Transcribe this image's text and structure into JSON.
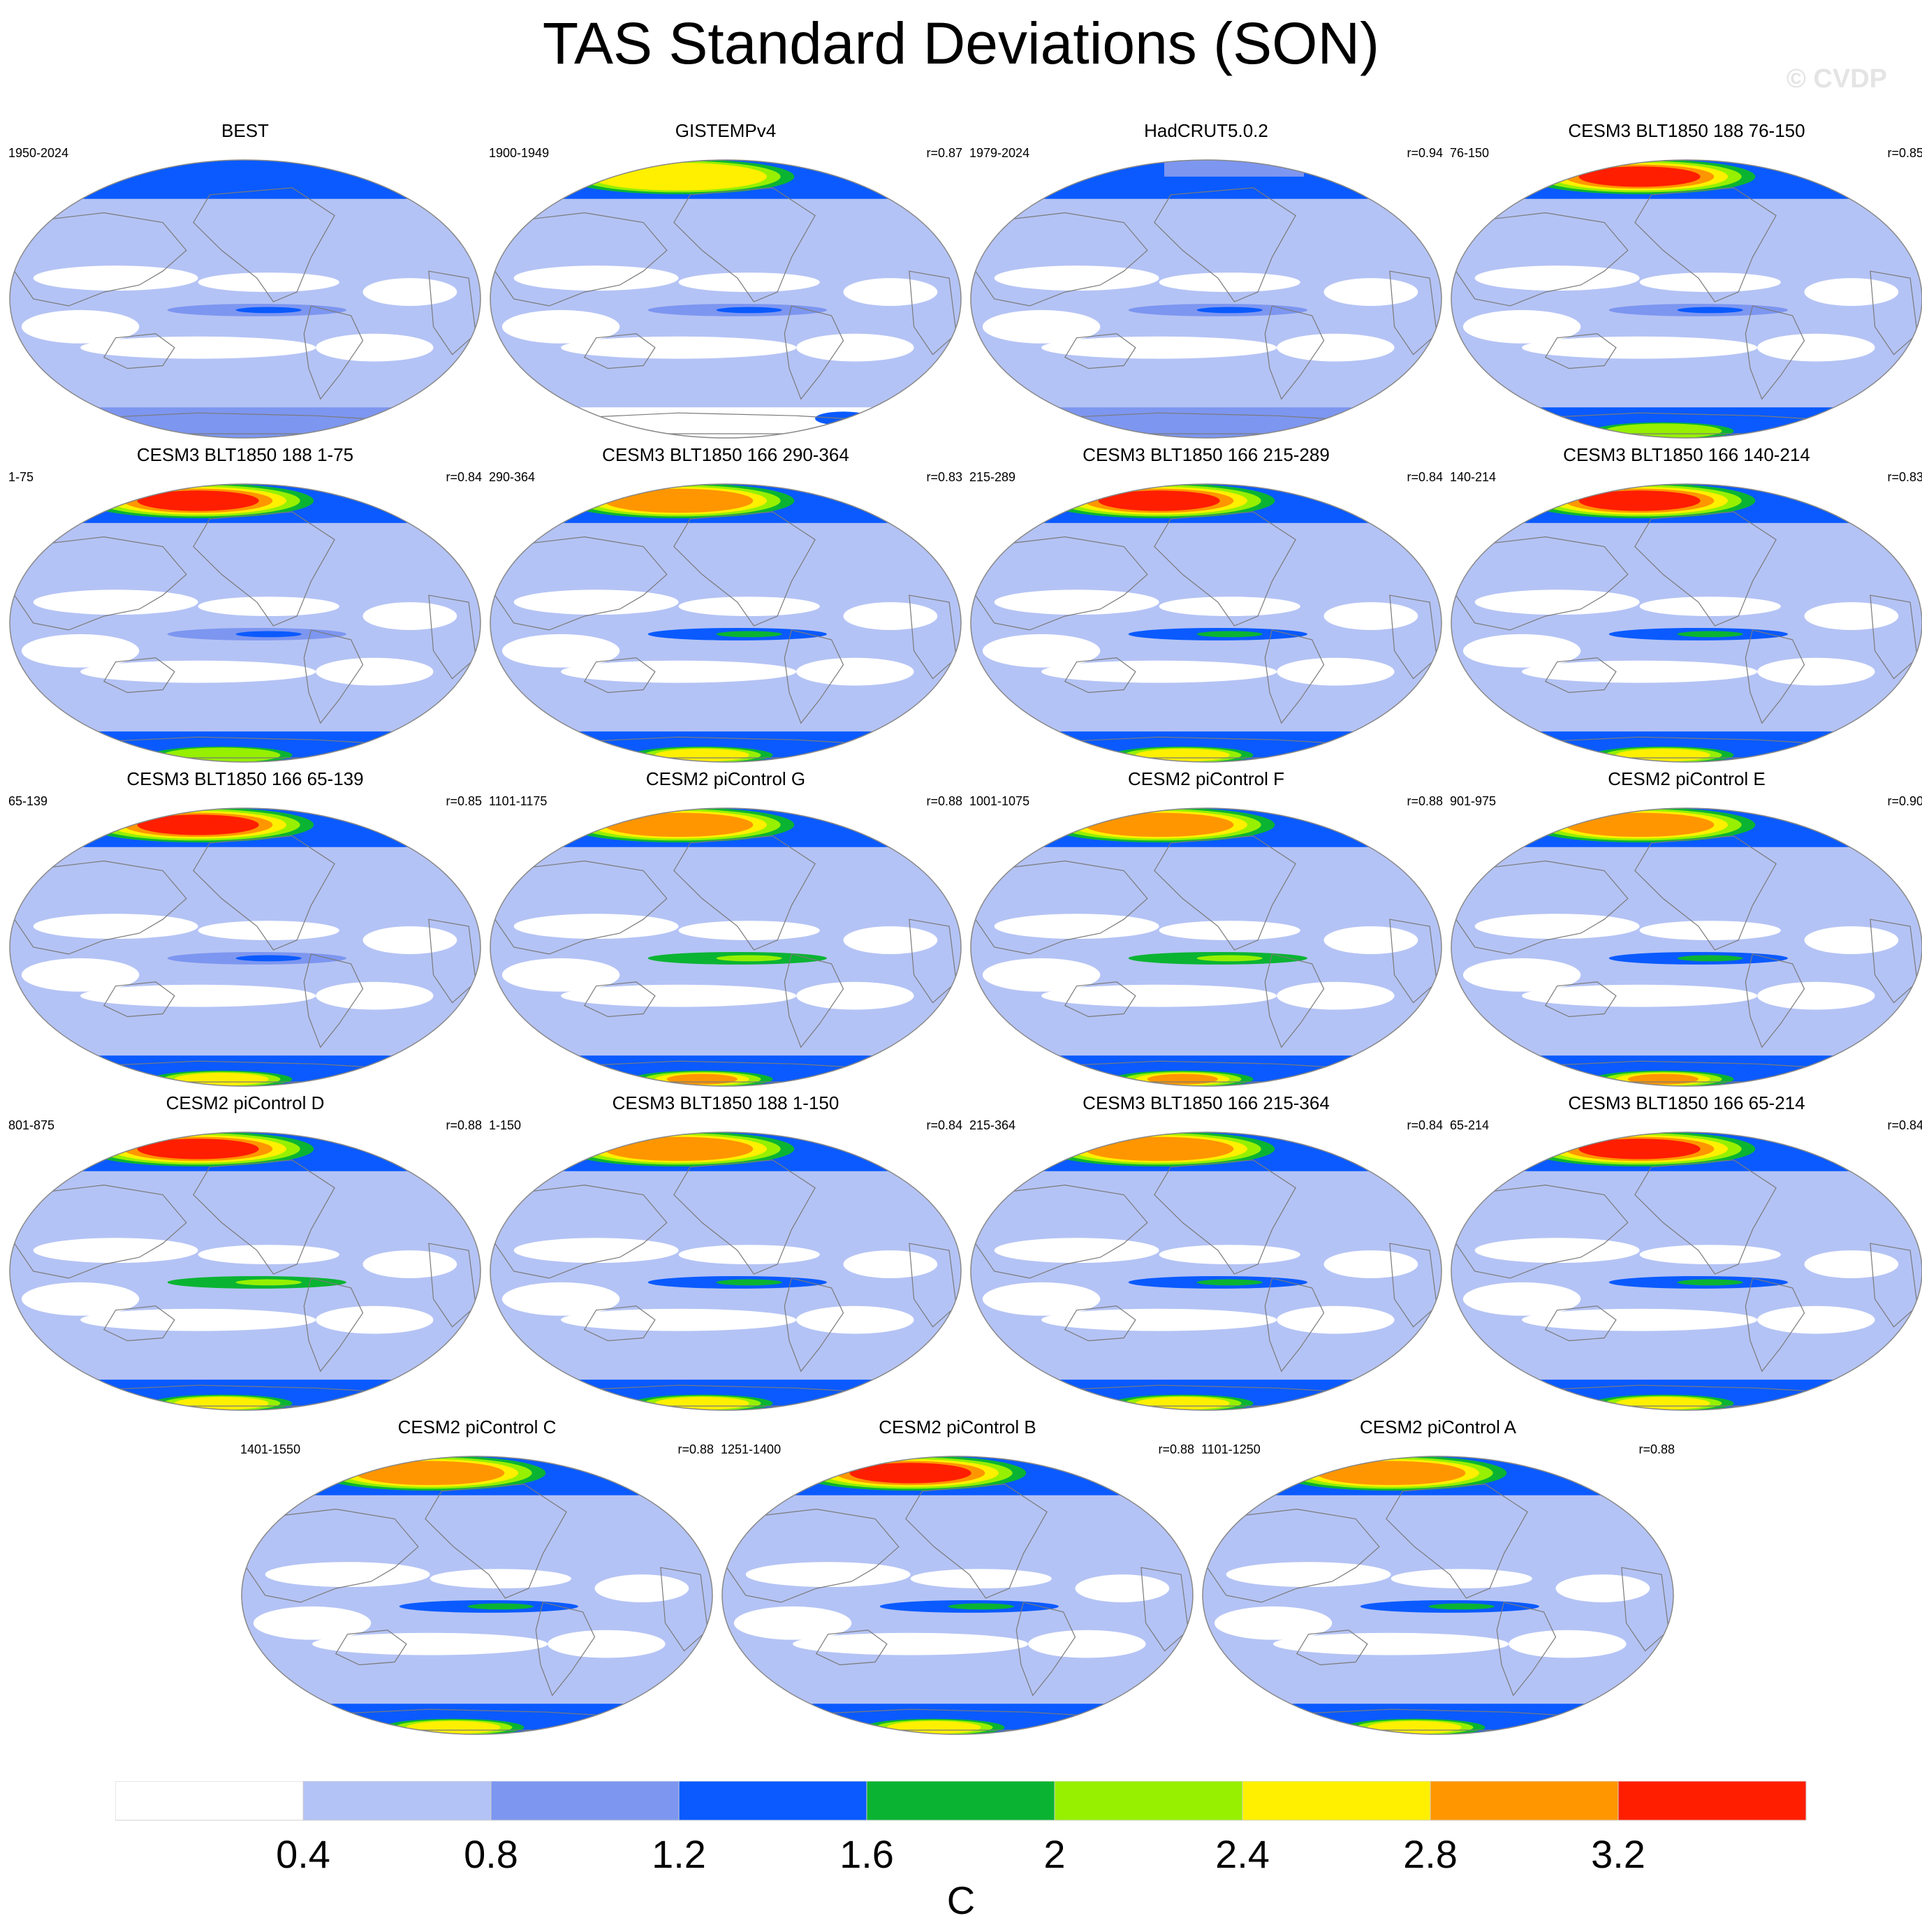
{
  "title": "TAS Standard Deviations (SON)",
  "watermark": "© CVDP",
  "colors": {
    "ocean_base": "#ffffff",
    "outline": "#888888",
    "coast": "#7a7a7a"
  },
  "panels": [
    {
      "title": "BEST",
      "period": "1950-2024",
      "r": "",
      "arctic_level": 3,
      "pac_level": 1,
      "ant_level": 1,
      "missing_ant": false,
      "missing_arctic": false
    },
    {
      "title": "GISTEMPv4",
      "period": "1900-1949",
      "r": "r=0.87",
      "arctic_level": 6,
      "pac_level": 1,
      "ant_level": 0,
      "missing_ant": true,
      "missing_arctic": false
    },
    {
      "title": "HadCRUT5.0.2",
      "period": "1979-2024",
      "r": "r=0.94",
      "arctic_level": 3,
      "pac_level": 1,
      "ant_level": 1,
      "missing_ant": false,
      "missing_arctic": true
    },
    {
      "title": "CESM3 BLT1850 188 76-150",
      "period": "76-150",
      "r": "r=0.85",
      "arctic_level": 8,
      "pac_level": 1,
      "ant_level": 5,
      "missing_ant": false,
      "missing_arctic": false
    },
    {
      "title": "CESM3 BLT1850 188 1-75",
      "period": "1-75",
      "r": "r=0.84",
      "arctic_level": 8,
      "pac_level": 1,
      "ant_level": 5,
      "missing_ant": false,
      "missing_arctic": false
    },
    {
      "title": "CESM3 BLT1850 166 290-364",
      "period": "290-364",
      "r": "r=0.83",
      "arctic_level": 7,
      "pac_level": 2,
      "ant_level": 6,
      "missing_ant": false,
      "missing_arctic": false
    },
    {
      "title": "CESM3 BLT1850 166 215-289",
      "period": "215-289",
      "r": "r=0.84",
      "arctic_level": 8,
      "pac_level": 2,
      "ant_level": 6,
      "missing_ant": false,
      "missing_arctic": false
    },
    {
      "title": "CESM3 BLT1850 166 140-214",
      "period": "140-214",
      "r": "r=0.83",
      "arctic_level": 8,
      "pac_level": 2,
      "ant_level": 6,
      "missing_ant": false,
      "missing_arctic": false
    },
    {
      "title": "CESM3 BLT1850 166 65-139",
      "period": "65-139",
      "r": "r=0.85",
      "arctic_level": 8,
      "pac_level": 1,
      "ant_level": 6,
      "missing_ant": false,
      "missing_arctic": false
    },
    {
      "title": "CESM2 piControl G",
      "period": "1101-1175",
      "r": "r=0.88",
      "arctic_level": 7,
      "pac_level": 3,
      "ant_level": 7,
      "missing_ant": false,
      "missing_arctic": false
    },
    {
      "title": "CESM2 piControl F",
      "period": "1001-1075",
      "r": "r=0.88",
      "arctic_level": 7,
      "pac_level": 3,
      "ant_level": 7,
      "missing_ant": false,
      "missing_arctic": false
    },
    {
      "title": "CESM2 piControl E",
      "period": "901-975",
      "r": "r=0.90",
      "arctic_level": 7,
      "pac_level": 2,
      "ant_level": 7,
      "missing_ant": false,
      "missing_arctic": false
    },
    {
      "title": "CESM2 piControl D",
      "period": "801-875",
      "r": "r=0.88",
      "arctic_level": 8,
      "pac_level": 3,
      "ant_level": 6,
      "missing_ant": false,
      "missing_arctic": false
    },
    {
      "title": "CESM3 BLT1850 188 1-150",
      "period": "1-150",
      "r": "r=0.84",
      "arctic_level": 7,
      "pac_level": 2,
      "ant_level": 6,
      "missing_ant": false,
      "missing_arctic": false
    },
    {
      "title": "CESM3 BLT1850 166 215-364",
      "period": "215-364",
      "r": "r=0.84",
      "arctic_level": 7,
      "pac_level": 2,
      "ant_level": 6,
      "missing_ant": false,
      "missing_arctic": false
    },
    {
      "title": "CESM3 BLT1850 166 65-214",
      "period": "65-214",
      "r": "r=0.84",
      "arctic_level": 8,
      "pac_level": 2,
      "ant_level": 6,
      "missing_ant": false,
      "missing_arctic": false
    },
    {
      "title": "CESM2 piControl C",
      "period": "1401-1550",
      "r": "r=0.88",
      "arctic_level": 7,
      "pac_level": 2,
      "ant_level": 6,
      "missing_ant": false,
      "missing_arctic": false
    },
    {
      "title": "CESM2 piControl B",
      "period": "1251-1400",
      "r": "r=0.88",
      "arctic_level": 8,
      "pac_level": 2,
      "ant_level": 6,
      "missing_ant": false,
      "missing_arctic": false
    },
    {
      "title": "CESM2 piControl A",
      "period": "1101-1250",
      "r": "r=0.88",
      "arctic_level": 7,
      "pac_level": 2,
      "ant_level": 6,
      "missing_ant": false,
      "missing_arctic": false
    }
  ],
  "colorbar": {
    "colors": [
      "#ffffff",
      "#b4c3f5",
      "#7d96f0",
      "#0a5aff",
      "#0ab432",
      "#96f000",
      "#fff000",
      "#ff9600",
      "#ff1e00"
    ],
    "tick_labels": [
      "0.4",
      "0.8",
      "1.2",
      "1.6",
      "2",
      "2.4",
      "2.8",
      "3.2"
    ],
    "unit": "C"
  }
}
